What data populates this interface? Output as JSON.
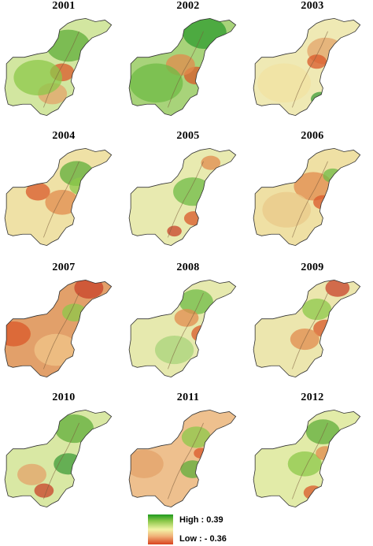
{
  "panels": [
    {
      "year": "2001",
      "base": "#d2e6a0",
      "accents": [
        [
          "#5fae3a",
          0.55,
          0.3,
          0.18
        ],
        [
          "#d9582a",
          0.5,
          0.55,
          0.1
        ],
        [
          "#e3a36a",
          0.42,
          0.75,
          0.12
        ],
        [
          "#8cc84a",
          0.3,
          0.6,
          0.2
        ]
      ]
    },
    {
      "year": "2002",
      "base": "#a8d37a",
      "accents": [
        [
          "#2f9c2f",
          0.65,
          0.18,
          0.18
        ],
        [
          "#d9582a",
          0.58,
          0.58,
          0.1
        ],
        [
          "#e28b4e",
          0.45,
          0.48,
          0.12
        ],
        [
          "#6fbb45",
          0.25,
          0.65,
          0.22
        ]
      ]
    },
    {
      "year": "2003",
      "base": "#efe9b4",
      "accents": [
        [
          "#e3a36a",
          0.62,
          0.35,
          0.15
        ],
        [
          "#3e9c3a",
          0.58,
          0.8,
          0.08
        ],
        [
          "#d9582a",
          0.55,
          0.45,
          0.08
        ],
        [
          "#f1e2a2",
          0.28,
          0.65,
          0.22
        ]
      ]
    },
    {
      "year": "2004",
      "base": "#efe1a6",
      "accents": [
        [
          "#5fae3a",
          0.62,
          0.28,
          0.14
        ],
        [
          "#d9582a",
          0.3,
          0.45,
          0.1
        ],
        [
          "#e28b4e",
          0.5,
          0.55,
          0.14
        ],
        [
          "#8cc84a",
          0.66,
          0.4,
          0.1
        ]
      ]
    },
    {
      "year": "2005",
      "base": "#e8eab0",
      "accents": [
        [
          "#6fbb45",
          0.55,
          0.45,
          0.16
        ],
        [
          "#d9582a",
          0.56,
          0.7,
          0.08
        ],
        [
          "#c8422a",
          0.4,
          0.82,
          0.06
        ],
        [
          "#e28b4e",
          0.7,
          0.18,
          0.08
        ]
      ]
    },
    {
      "year": "2006",
      "base": "#efe0a4",
      "accents": [
        [
          "#e28b4e",
          0.52,
          0.4,
          0.16
        ],
        [
          "#d9582a",
          0.6,
          0.55,
          0.08
        ],
        [
          "#6fbb45",
          0.68,
          0.3,
          0.08
        ],
        [
          "#e9c98a",
          0.3,
          0.62,
          0.2
        ]
      ]
    },
    {
      "year": "2007",
      "base": "#e2a06a",
      "accents": [
        [
          "#d9582a",
          0.1,
          0.55,
          0.14
        ],
        [
          "#c8422a",
          0.72,
          0.12,
          0.12
        ],
        [
          "#8cc84a",
          0.6,
          0.35,
          0.1
        ],
        [
          "#f0c58a",
          0.45,
          0.7,
          0.18
        ]
      ]
    },
    {
      "year": "2008",
      "base": "#e6e9ae",
      "accents": [
        [
          "#6fbb45",
          0.58,
          0.25,
          0.14
        ],
        [
          "#d9582a",
          0.64,
          0.55,
          0.1
        ],
        [
          "#e28b4e",
          0.5,
          0.4,
          0.1
        ],
        [
          "#a8d37a",
          0.4,
          0.7,
          0.16
        ]
      ]
    },
    {
      "year": "2009",
      "base": "#ece6ae",
      "accents": [
        [
          "#c8422a",
          0.72,
          0.12,
          0.1
        ],
        [
          "#d9582a",
          0.62,
          0.5,
          0.1
        ],
        [
          "#8cc84a",
          0.55,
          0.32,
          0.12
        ],
        [
          "#e28b4e",
          0.45,
          0.6,
          0.12
        ]
      ]
    },
    {
      "year": "2010",
      "base": "#d9e8a4",
      "accents": [
        [
          "#5fae3a",
          0.6,
          0.22,
          0.16
        ],
        [
          "#c8422a",
          0.35,
          0.8,
          0.08
        ],
        [
          "#3e9c3a",
          0.55,
          0.55,
          0.12
        ],
        [
          "#e3a36a",
          0.25,
          0.65,
          0.12
        ]
      ]
    },
    {
      "year": "2011",
      "base": "#eec08e",
      "accents": [
        [
          "#e3a36a",
          0.15,
          0.55,
          0.16
        ],
        [
          "#8cc84a",
          0.58,
          0.3,
          0.12
        ],
        [
          "#5fae3a",
          0.55,
          0.6,
          0.1
        ],
        [
          "#d9582a",
          0.62,
          0.45,
          0.06
        ]
      ]
    },
    {
      "year": "2012",
      "base": "#e2eba8",
      "accents": [
        [
          "#5fae3a",
          0.6,
          0.25,
          0.14
        ],
        [
          "#d9582a",
          0.52,
          0.82,
          0.08
        ],
        [
          "#8cc84a",
          0.45,
          0.55,
          0.14
        ],
        [
          "#e28b4e",
          0.62,
          0.45,
          0.08
        ]
      ]
    }
  ],
  "legend": {
    "high": "High : 0.39",
    "low": "Low : - 0.36",
    "colors": [
      "#1e9a1e",
      "#8cc84a",
      "#f3f3a6",
      "#f0b37a",
      "#d9431f"
    ]
  }
}
